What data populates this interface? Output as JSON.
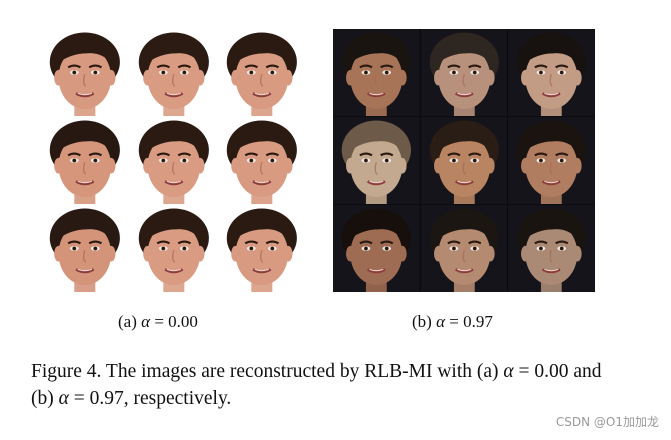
{
  "figure": {
    "subcaption_a_label": "(a)",
    "subcaption_a_value": "= 0.00",
    "subcaption_b_label": "(b)",
    "subcaption_b_value": "= 0.97",
    "alpha_symbol": "α",
    "caption_part1": "Figure 4. The images are reconstructed by RLB-MI with (a) ",
    "caption_part2": " = 0.00 and (b) ",
    "caption_part3": " = 0.97, respectively."
  },
  "watermark": "CSDN @O1加加龙",
  "panel_a": {
    "background": "#ffffff",
    "faces": [
      {
        "skin": "#d79a80",
        "hair": "#2a1a12"
      },
      {
        "skin": "#d99c82",
        "hair": "#2b1b13"
      },
      {
        "skin": "#d89b81",
        "hair": "#2a1a12"
      },
      {
        "skin": "#d5967b",
        "hair": "#281812"
      },
      {
        "skin": "#d99c82",
        "hair": "#2a1a12"
      },
      {
        "skin": "#d89a80",
        "hair": "#2a1a12"
      },
      {
        "skin": "#d4947a",
        "hair": "#291913"
      },
      {
        "skin": "#d99c82",
        "hair": "#2a1a12"
      },
      {
        "skin": "#d89b81",
        "hair": "#2a1a12"
      }
    ]
  },
  "panel_b": {
    "background": "#0b0b0f",
    "faces": [
      {
        "skin": "#a87458",
        "hair": "#1a1410"
      },
      {
        "skin": "#b8917c",
        "hair": "#2e2620"
      },
      {
        "skin": "#c29c85",
        "hair": "#17120f"
      },
      {
        "skin": "#c3a98f",
        "hair": "#6e5a48"
      },
      {
        "skin": "#b88462",
        "hair": "#2a1d15"
      },
      {
        "skin": "#b07d60",
        "hair": "#1a130f"
      },
      {
        "skin": "#9e6c52",
        "hair": "#160f0c"
      },
      {
        "skin": "#b48a70",
        "hair": "#1c1612"
      },
      {
        "skin": "#aa8a74",
        "hair": "#1a1411"
      }
    ]
  }
}
